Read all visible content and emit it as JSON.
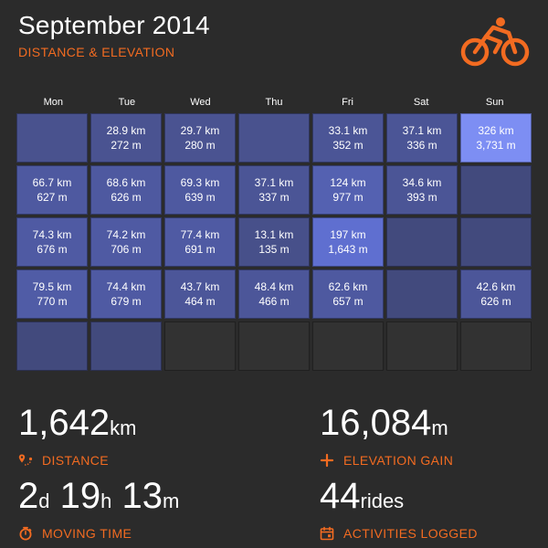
{
  "header": {
    "title": "September 2014",
    "subtitle": "DISTANCE & ELEVATION",
    "logo_icon": "cyclist-logo-icon",
    "accent_color": "#f26b21"
  },
  "calendar": {
    "days": [
      "Mon",
      "Tue",
      "Wed",
      "Thu",
      "Fri",
      "Sat",
      "Sun"
    ],
    "weeks": [
      [
        {
          "distance": "",
          "elevation": "",
          "color": "#49528e"
        },
        {
          "distance": "28.9 km",
          "elevation": "272 m",
          "color": "#4a5391"
        },
        {
          "distance": "29.7 km",
          "elevation": "280 m",
          "color": "#4a5391"
        },
        {
          "distance": "",
          "elevation": "",
          "color": "#49528e"
        },
        {
          "distance": "33.1 km",
          "elevation": "352 m",
          "color": "#4b5596"
        },
        {
          "distance": "37.1 km",
          "elevation": "336 m",
          "color": "#4b5596"
        },
        {
          "distance": "326 km",
          "elevation": "3,731 m",
          "color": "#7d8ef3"
        }
      ],
      [
        {
          "distance": "66.7 km",
          "elevation": "627 m",
          "color": "#4e59a0"
        },
        {
          "distance": "68.6 km",
          "elevation": "626 m",
          "color": "#4e59a0"
        },
        {
          "distance": "69.3 km",
          "elevation": "639 m",
          "color": "#4e59a0"
        },
        {
          "distance": "37.1 km",
          "elevation": "337 m",
          "color": "#4b5596"
        },
        {
          "distance": "124 km",
          "elevation": "977 m",
          "color": "#5461b1"
        },
        {
          "distance": "34.6 km",
          "elevation": "393 m",
          "color": "#4b5596"
        },
        {
          "distance": "",
          "elevation": "",
          "color": "#424a7d"
        }
      ],
      [
        {
          "distance": "74.3 km",
          "elevation": "676 m",
          "color": "#4f5aa3"
        },
        {
          "distance": "74.2 km",
          "elevation": "706 m",
          "color": "#4f5aa3"
        },
        {
          "distance": "77.4 km",
          "elevation": "691 m",
          "color": "#4f5aa3"
        },
        {
          "distance": "13.1 km",
          "elevation": "135 m",
          "color": "#47508a"
        },
        {
          "distance": "197 km",
          "elevation": "1,643 m",
          "color": "#5f6fd0"
        },
        {
          "distance": "",
          "elevation": "",
          "color": "#424a7d"
        },
        {
          "distance": "",
          "elevation": "",
          "color": "#424a7d"
        }
      ],
      [
        {
          "distance": "79.5 km",
          "elevation": "770 m",
          "color": "#505ca6"
        },
        {
          "distance": "74.4 km",
          "elevation": "679 m",
          "color": "#4f5aa3"
        },
        {
          "distance": "43.7 km",
          "elevation": "464 m",
          "color": "#4c5699"
        },
        {
          "distance": "48.4 km",
          "elevation": "466 m",
          "color": "#4c5699"
        },
        {
          "distance": "62.6 km",
          "elevation": "657 m",
          "color": "#4e59a0"
        },
        {
          "distance": "",
          "elevation": "",
          "color": "#424a7d"
        },
        {
          "distance": "42.6 km",
          "elevation": "626 m",
          "color": "#4c5699"
        }
      ],
      [
        {
          "distance": "",
          "elevation": "",
          "color": "#424a7d"
        },
        {
          "distance": "",
          "elevation": "",
          "color": "#424a7d"
        },
        {
          "distance": "",
          "elevation": "",
          "color": "empty"
        },
        {
          "distance": "",
          "elevation": "",
          "color": "empty"
        },
        {
          "distance": "",
          "elevation": "",
          "color": "empty"
        },
        {
          "distance": "",
          "elevation": "",
          "color": "empty"
        },
        {
          "distance": "",
          "elevation": "",
          "color": "empty"
        }
      ]
    ]
  },
  "stats": {
    "distance": {
      "value": "1,642",
      "unit": "km",
      "label": "DISTANCE",
      "icon": "route-pin-icon"
    },
    "elevation": {
      "value": "16,084",
      "unit": "m",
      "label": "ELEVATION GAIN",
      "icon": "plus-icon"
    },
    "moving_time": {
      "days": "2",
      "days_unit": "d",
      "hours": "19",
      "hours_unit": "h",
      "minutes": "13",
      "minutes_unit": "m",
      "label": "MOVING TIME",
      "icon": "stopwatch-icon"
    },
    "activities": {
      "value": "44",
      "unit": "rides",
      "label": "ACTIVITIES LOGGED",
      "icon": "calendar-icon"
    }
  }
}
